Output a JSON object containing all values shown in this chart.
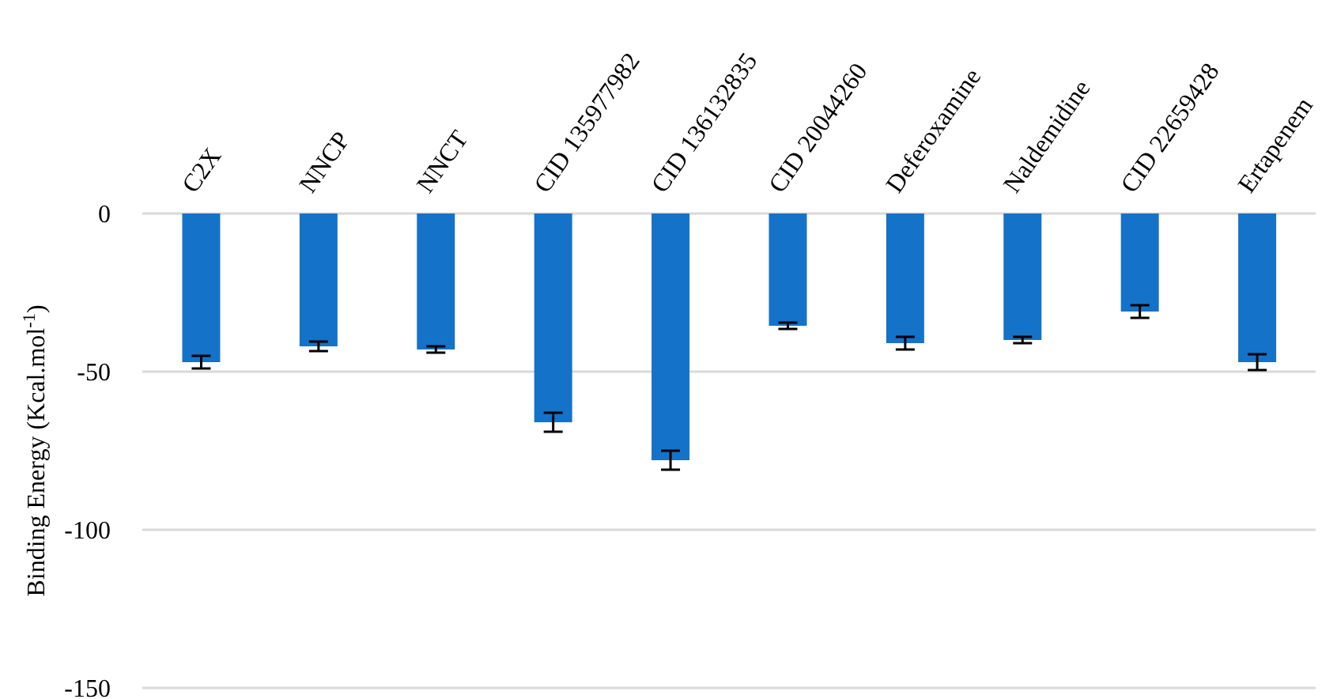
{
  "chart_data": {
    "type": "bar",
    "ylabel": "Binding Energy (Kcal.mol$^{-1}$)",
    "categories": [
      "C2X",
      "NNCP",
      "NNCT",
      "CID 135977982",
      "CID 136132835",
      "CID 20044260",
      "Deferoxamine",
      "Naldemidine",
      "CID 22659428",
      "Ertapenem"
    ],
    "values": [
      -47,
      -42,
      -43,
      -66,
      -78,
      -35.5,
      -41,
      -40,
      -31,
      -47
    ],
    "errors": [
      2,
      1.5,
      1,
      3,
      3,
      1,
      2,
      1,
      2,
      2.5
    ],
    "color": "#1473c8",
    "ylim": [
      -150,
      0
    ],
    "yticks": [
      -150,
      -100,
      -50,
      0
    ],
    "grid": "y"
  }
}
